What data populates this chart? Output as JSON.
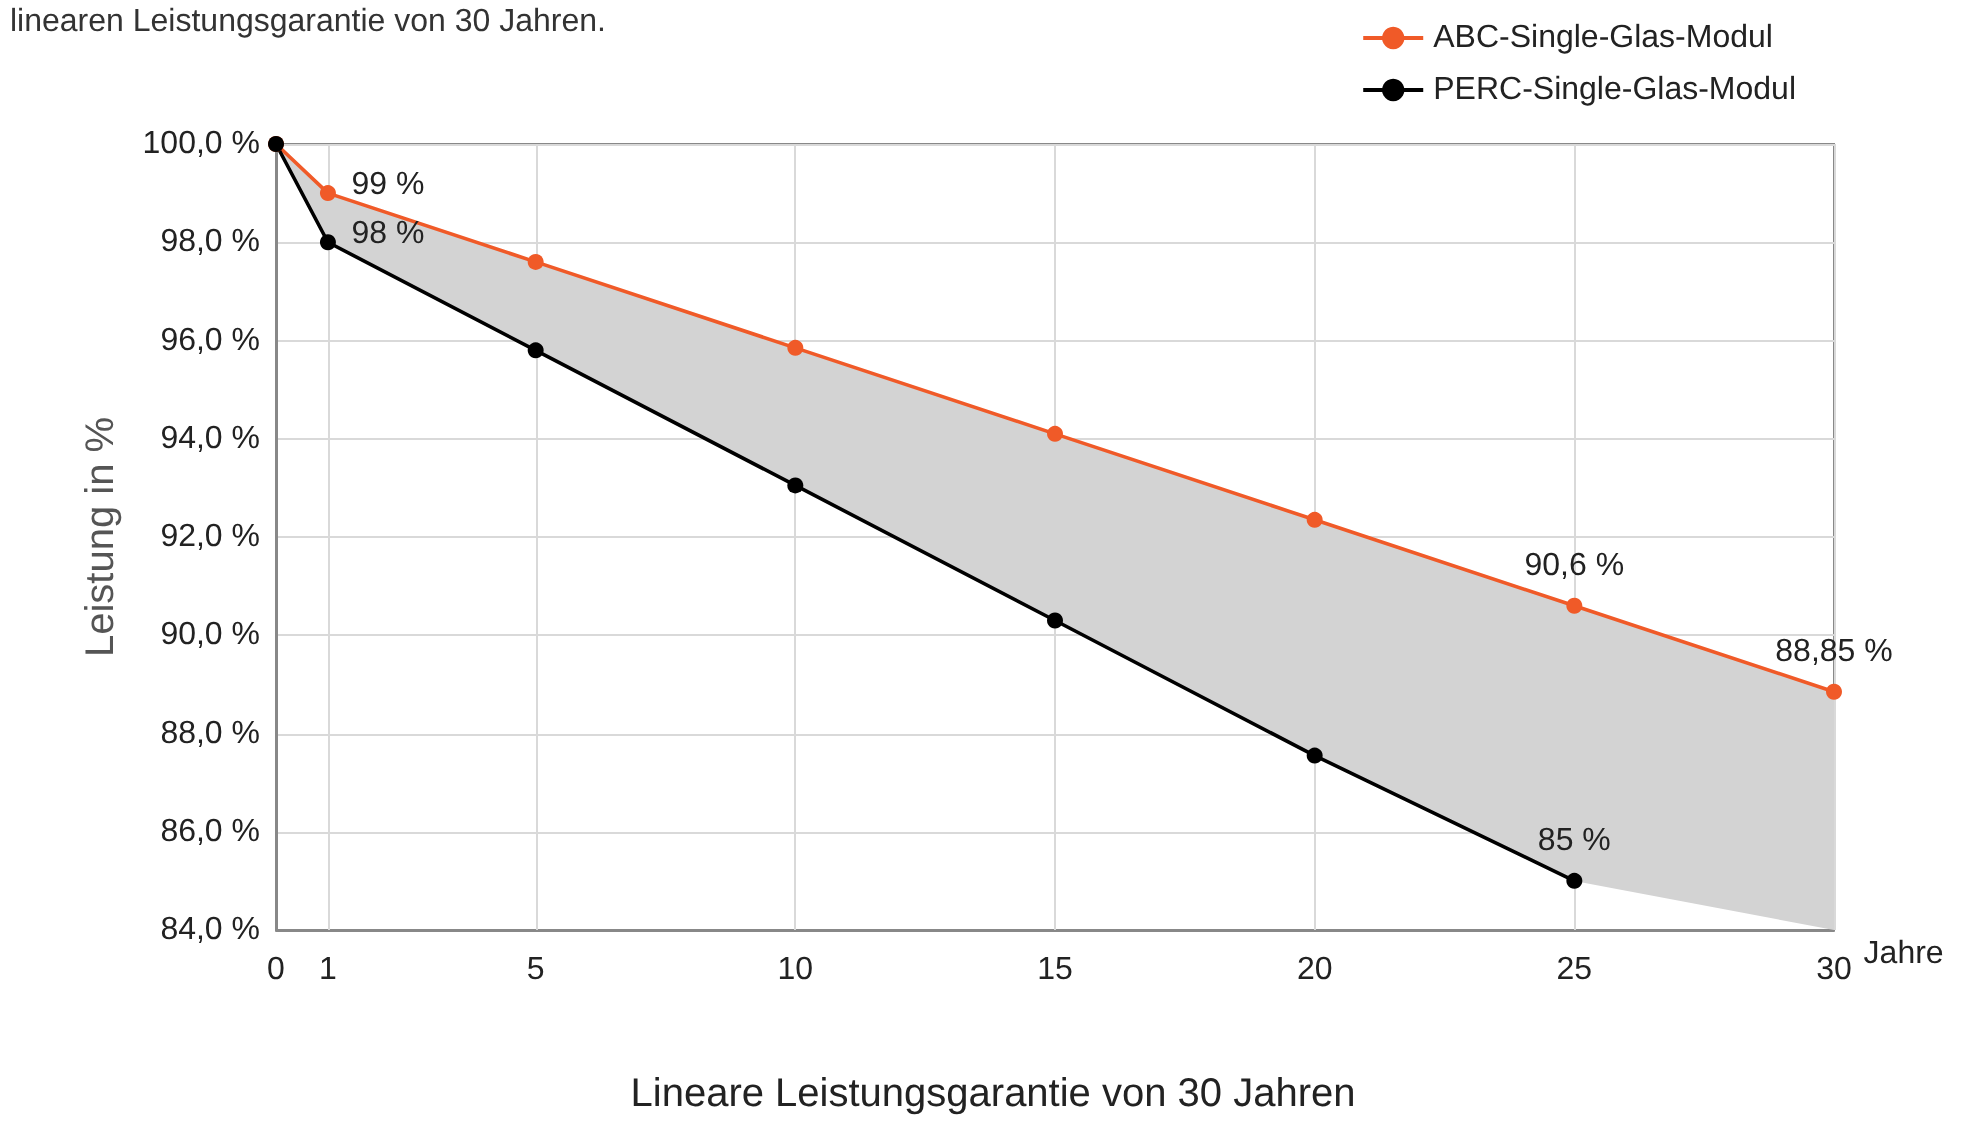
{
  "chart_data": {
    "type": "line",
    "subtitle": "linearen Leistungsgarantie von 30 Jahren.",
    "xlabel": "Jahre",
    "ylabel": "Leistung in %",
    "annotations": [
      "Lineare Leistungsgarantie von 30 Jahren"
    ],
    "x": [
      0,
      1,
      5,
      10,
      15,
      20,
      25,
      30
    ],
    "series": [
      {
        "name": "ABC-Single-Glas-Modul",
        "color": "#f05a28",
        "values": [
          100,
          99,
          97.6,
          95.85,
          94.1,
          92.35,
          90.6,
          88.85
        ],
        "value_labels": [
          null,
          "99 %",
          null,
          null,
          null,
          null,
          "90,6 %",
          "88,85 %"
        ],
        "lower": [
          100,
          98,
          95.8,
          93.05,
          90.3,
          87.55,
          85,
          84
        ],
        "upper": [
          100,
          99,
          97.6,
          95.85,
          94.1,
          92.35,
          90.6,
          88.85
        ]
      },
      {
        "name": "PERC-Single-Glas-Modul",
        "color": "#000000",
        "x": [
          0,
          1,
          5,
          10,
          15,
          20,
          25
        ],
        "values": [
          100,
          98,
          95.8,
          93.05,
          90.3,
          87.55,
          85
        ],
        "value_labels": [
          null,
          "98 %",
          null,
          null,
          null,
          null,
          "85 %"
        ]
      }
    ],
    "xlim": [
      0,
      30
    ],
    "xticks": [
      0,
      1,
      5,
      10,
      15,
      20,
      25,
      30
    ],
    "ylim": [
      84,
      100
    ],
    "yticks": [
      {
        "value": 84,
        "label": "84,0 %"
      },
      {
        "value": 86,
        "label": "86,0 %"
      },
      {
        "value": 88,
        "label": "88,0 %"
      },
      {
        "value": 90,
        "label": "90,0 %"
      },
      {
        "value": 92,
        "label": "92,0 %"
      },
      {
        "value": 94,
        "label": "94,0 %"
      },
      {
        "value": 96,
        "label": "96,0 %"
      },
      {
        "value": 98,
        "label": "98,0 %"
      },
      {
        "value": 100,
        "label": "100,0 %"
      }
    ],
    "grid": true,
    "legend": "top right",
    "marker": "circle",
    "line_style": "solid"
  }
}
